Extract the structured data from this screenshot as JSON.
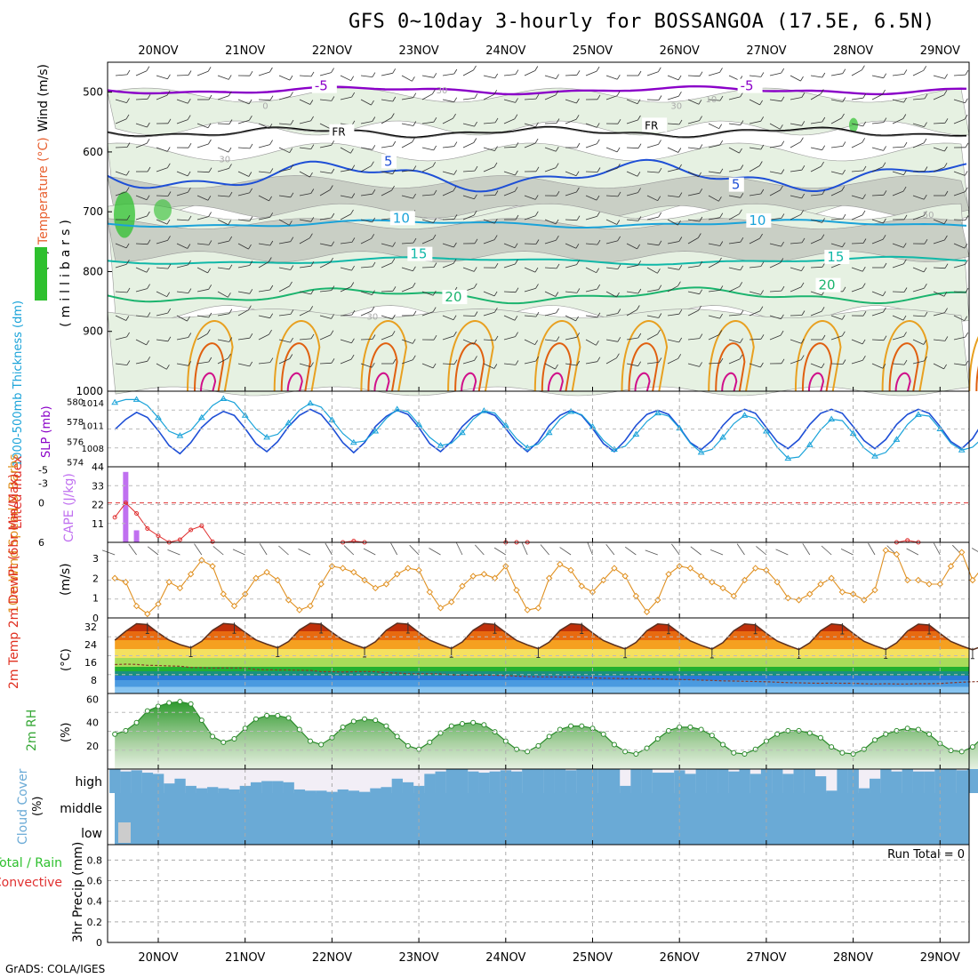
{
  "title": "GFS 0~10day 3-hourly for BOSSANGOA (17.5E, 6.5N)",
  "credit": "GrADS: COLA/IGES",
  "dates": [
    "20NOV",
    "21NOV",
    "22NOV",
    "23NOV",
    "24NOV",
    "25NOV",
    "26NOV",
    "27NOV",
    "28NOV",
    "29NOV"
  ],
  "colors": {
    "purple": "#8a00c8",
    "blue": "#1e4fd6",
    "cyan": "#1aa3d9",
    "teal": "#10b8a8",
    "seagreen": "#1bb46e",
    "orange": "#e8a020",
    "darkorange": "#e06010",
    "magenta": "#d0108a",
    "rh": "#2ec02e",
    "lifted": "#e03030",
    "cape": "#c070f0",
    "wind10": "#e09020",
    "cloud": "#6aaad6",
    "cloudpale": "#f2eef6",
    "rh2m": "#38a838"
  },
  "chart_data": [
    {
      "type": "contour",
      "panel": "upper_air",
      "ylabel_parts": [
        "RH (%)",
        "Temperature (°C)",
        "Wind (m/s)"
      ],
      "ylabel_unit": "(millibars)",
      "y_ticks": [
        500,
        600,
        700,
        800,
        900,
        1000
      ],
      "ylim": [
        1000,
        450
      ],
      "isotherm_labels": [
        {
          "text": "-5",
          "level": 497,
          "day": 1.8
        },
        {
          "text": "-5",
          "level": 497,
          "day": 6.7
        },
        {
          "text": "FR",
          "level": 573,
          "day": 2.0
        },
        {
          "text": "FR",
          "level": 562,
          "day": 5.6
        },
        {
          "text": "5",
          "level": 623,
          "day": 2.6
        },
        {
          "text": "5",
          "level": 662,
          "day": 6.6
        },
        {
          "text": "10",
          "level": 718,
          "day": 2.7
        },
        {
          "text": "10",
          "level": 722,
          "day": 6.8
        },
        {
          "text": "15",
          "level": 778,
          "day": 2.9
        },
        {
          "text": "15",
          "level": 783,
          "day": 7.7
        },
        {
          "text": "20",
          "level": 850,
          "day": 3.3
        },
        {
          "text": "20",
          "level": 830,
          "day": 7.6
        }
      ],
      "rh_labels": [
        {
          "text": "30",
          "level": 502,
          "day": 3.2
        },
        {
          "text": "0",
          "level": 528,
          "day": 1.2
        },
        {
          "text": "30",
          "level": 528,
          "day": 5.9
        },
        {
          "text": "10",
          "level": 517,
          "day": 6.3
        },
        {
          "text": "30",
          "level": 617,
          "day": 0.7
        },
        {
          "text": "50",
          "level": 710,
          "day": 8.8
        },
        {
          "text": "30",
          "level": 880,
          "day": 2.4
        }
      ]
    },
    {
      "type": "line",
      "panel": "thickness_slp",
      "ylabel": "1000-500mb Thickness (dm)",
      "ylabel_right": "SLP (mb)",
      "y_ticks_left": [
        574,
        576,
        578,
        580
      ],
      "y_ticks_slp": [
        1008,
        1011,
        1014
      ],
      "series": [
        {
          "name": "Thickness (dm)",
          "values": [
            577.2,
            578.2,
            578.9,
            578.4,
            577.1,
            575.6,
            574.8,
            575.9,
            577.4,
            578.4,
            579.0,
            578.6,
            577.3,
            575.8,
            575.0,
            576.0,
            577.5,
            578.6,
            579.2,
            578.7,
            577.4,
            575.9,
            574.9,
            575.9,
            577.5,
            578.5,
            579.1,
            578.7,
            577.4,
            575.8,
            575.0,
            576.0,
            577.5,
            578.5,
            579.0,
            578.6,
            577.3,
            575.9,
            575.0,
            576.0,
            577.6,
            578.6,
            579.1,
            578.6,
            577.3,
            575.8,
            575.0,
            576.1,
            577.6,
            578.7,
            579.1,
            578.7,
            577.4,
            575.9,
            575.2,
            576.1,
            577.6,
            578.7,
            579.2,
            578.8,
            577.4,
            576.0,
            575.3,
            576.2,
            577.7,
            578.8,
            579.2,
            578.8,
            577.5,
            576.1,
            575.3,
            576.2,
            577.7,
            578.7,
            579.2,
            578.8,
            577.5,
            576.0,
            575.3,
            576.3,
            578.0
          ]
        },
        {
          "name": "SLP (mb)",
          "values": [
            1014.0,
            1014.4,
            1014.4,
            1013.6,
            1012.0,
            1010.2,
            1009.6,
            1010.3,
            1012.0,
            1013.6,
            1014.5,
            1014.0,
            1012.3,
            1010.5,
            1009.4,
            1009.8,
            1011.3,
            1013.0,
            1013.9,
            1013.4,
            1011.7,
            1009.9,
            1008.7,
            1008.9,
            1010.2,
            1011.9,
            1013.1,
            1012.8,
            1011.1,
            1009.4,
            1008.3,
            1008.6,
            1010.0,
            1011.8,
            1012.9,
            1012.6,
            1011.0,
            1009.2,
            1008.0,
            1008.5,
            1010.0,
            1011.8,
            1012.8,
            1012.4,
            1010.8,
            1009.0,
            1007.8,
            1008.2,
            1009.8,
            1011.5,
            1012.6,
            1012.2,
            1010.6,
            1008.6,
            1007.4,
            1007.8,
            1009.4,
            1011.2,
            1012.3,
            1011.9,
            1010.2,
            1008.1,
            1006.6,
            1006.8,
            1008.4,
            1010.4,
            1011.8,
            1011.6,
            1009.9,
            1008.0,
            1006.9,
            1007.4,
            1009.1,
            1011.1,
            1012.4,
            1012.2,
            1010.5,
            1008.6,
            1007.7,
            1008.1,
            1009.4
          ]
        }
      ]
    },
    {
      "type": "bar+line",
      "panel": "lifted_cape",
      "ylabel": "Lifted Index",
      "ylabel_right": "CAPE (J/kg)",
      "y_ticks_left": [
        6,
        0,
        -3,
        -5
      ],
      "y_ticks_cape": [
        11,
        22,
        33,
        44
      ],
      "cape_bars": [
        {
          "t": 1,
          "value": 41
        },
        {
          "t": 2,
          "value": 7
        }
      ],
      "lifted_index": [
        {
          "t": 0,
          "value": 2.2
        },
        {
          "t": 1,
          "value": 0.0
        },
        {
          "t": 2,
          "value": 1.6
        },
        {
          "t": 3,
          "value": 3.9
        },
        {
          "t": 4,
          "value": 5.0
        },
        {
          "t": 5,
          "value": 6.4
        },
        {
          "t": 6,
          "value": 5.6
        },
        {
          "t": 7,
          "value": 4.1
        },
        {
          "t": 8,
          "value": 3.5
        },
        {
          "t": 9,
          "value": 5.9
        },
        {
          "t": 21,
          "value": 7.0
        },
        {
          "t": 22,
          "value": 5.8
        },
        {
          "t": 23,
          "value": 6.8
        },
        {
          "t": 36,
          "value": 6.8
        },
        {
          "t": 37,
          "value": 6.0
        },
        {
          "t": 38,
          "value": 6.9
        },
        {
          "t": 72,
          "value": 6.7
        },
        {
          "t": 73,
          "value": 5.7
        },
        {
          "t": 74,
          "value": 6.7
        }
      ]
    },
    {
      "type": "line",
      "panel": "wind10m",
      "ylabel": "10m Wind Speed & Barbs",
      "y_unit": "(m/s)",
      "y_ticks": [
        0,
        1,
        2,
        3
      ],
      "values": [
        2.0,
        1.8,
        0.6,
        0.2,
        0.7,
        1.8,
        1.5,
        2.2,
        2.9,
        2.6,
        1.2,
        0.6,
        1.2,
        2.0,
        2.3,
        1.9,
        0.9,
        0.4,
        0.6,
        1.7,
        2.6,
        2.5,
        2.3,
        1.9,
        1.5,
        1.7,
        2.2,
        2.5,
        2.4,
        1.3,
        0.5,
        0.8,
        1.6,
        2.1,
        2.2,
        2.0,
        2.6,
        1.4,
        0.4,
        0.5,
        2.0,
        2.7,
        2.4,
        1.6,
        1.3,
        1.9,
        2.5,
        2.1,
        1.1,
        0.3,
        0.9,
        2.2,
        2.6,
        2.5,
        2.1,
        1.8,
        1.5,
        1.1,
        1.9,
        2.5,
        2.4,
        1.8,
        1.0,
        0.9,
        1.2,
        1.7,
        2.0,
        1.3,
        1.2,
        0.9,
        1.4,
        3.4,
        3.2,
        1.9,
        1.9,
        1.7,
        1.7,
        2.6,
        3.3,
        1.9,
        2.6,
        0.3,
        0.4,
        0.4,
        2.0,
        1.4,
        2.3,
        1.5
      ]
    },
    {
      "type": "area",
      "panel": "temp2m",
      "ylabel": "2m Temp 2m DewPt (6hr Min/Max)",
      "y_unit": "(°C)",
      "y_ticks": [
        8,
        16,
        24,
        32
      ],
      "temp": [
        26.0,
        30.0,
        33.4,
        33.0,
        29.3,
        26.0,
        24.0,
        22.6,
        25.5,
        30.5,
        33.5,
        33.1,
        29.5,
        26.1,
        24.2,
        22.6,
        25.4,
        30.6,
        33.6,
        33.2,
        29.5,
        26.1,
        24.1,
        22.4,
        25.3,
        30.5,
        33.6,
        33.2,
        29.5,
        26.0,
        24.0,
        22.3,
        25.2,
        30.5,
        33.5,
        33.1,
        29.4,
        25.9,
        23.9,
        22.2,
        25.1,
        30.4,
        33.4,
        33.0,
        29.3,
        25.8,
        23.8,
        22.1,
        25.0,
        30.3,
        33.3,
        32.9,
        29.2,
        25.7,
        23.7,
        22.0,
        24.9,
        30.2,
        33.3,
        32.9,
        29.1,
        25.6,
        23.6,
        21.8,
        24.8,
        30.2,
        33.3,
        32.8,
        29.1,
        25.5,
        23.5,
        21.8,
        24.8,
        30.1,
        33.2,
        32.8,
        29.0,
        25.4,
        23.4,
        21.7,
        23.5
      ],
      "dewpoint": [
        15.0,
        15.2,
        15.1,
        14.7,
        14.6,
        14.4,
        14.3,
        13.7,
        13.6,
        13.4,
        13.5,
        13.5,
        13.4,
        12.8,
        12.7,
        12.6,
        12.6,
        12.5,
        12.4,
        11.8,
        11.8,
        11.7,
        11.8,
        11.9,
        11.8,
        11.3,
        11.2,
        10.9,
        10.9,
        10.9,
        10.8,
        10.4,
        10.3,
        10.2,
        10.3,
        10.2,
        10.1,
        9.8,
        9.6,
        9.5,
        9.5,
        9.4,
        9.4,
        9.2,
        9.1,
        8.9,
        8.8,
        8.7,
        8.7,
        8.6,
        8.6,
        8.4,
        8.3,
        8.2,
        8.0,
        7.9,
        7.7,
        7.6,
        7.5,
        7.4,
        7.3,
        7.1,
        6.9,
        6.8,
        6.7,
        6.6,
        6.7,
        6.6,
        6.6,
        6.4,
        6.3,
        6.4,
        6.3,
        6.3,
        6.4,
        6.4,
        6.5,
        6.8,
        7.1,
        7.3,
        7.5
      ]
    },
    {
      "type": "area",
      "panel": "rh2m",
      "ylabel": "2m RH",
      "y_unit": "(%)",
      "y_ticks": [
        20,
        40,
        60
      ],
      "values": [
        30,
        33,
        40,
        50,
        54,
        57,
        58,
        56,
        42,
        28,
        23,
        26,
        35,
        43,
        46,
        46,
        44,
        34,
        24,
        21,
        27,
        36,
        41,
        43,
        42,
        37,
        28,
        20,
        17,
        23,
        31,
        37,
        39,
        40,
        38,
        32,
        24,
        17,
        15,
        20,
        28,
        34,
        37,
        37,
        35,
        30,
        21,
        15,
        13,
        18,
        26,
        33,
        36,
        36,
        34,
        29,
        21,
        14,
        13,
        17,
        24,
        30,
        33,
        33,
        31,
        27,
        19,
        14,
        13,
        17,
        25,
        30,
        33,
        35,
        34,
        30,
        22,
        16,
        15,
        19,
        28,
        34,
        37,
        39,
        37
      ]
    },
    {
      "type": "heatmap",
      "panel": "cloud",
      "ylabel": "Cloud Cover (%)",
      "levels": [
        "high",
        "middle",
        "low"
      ],
      "high": [
        100,
        90,
        95,
        85,
        80,
        40,
        60,
        30,
        20,
        25,
        20,
        15,
        30,
        45,
        50,
        50,
        45,
        15,
        10,
        10,
        5,
        15,
        10,
        5,
        20,
        25,
        60,
        45,
        30,
        80,
        90,
        100,
        100,
        90,
        85,
        90,
        95,
        90,
        100,
        100,
        100,
        100,
        95,
        100,
        100,
        100,
        100,
        30,
        100,
        100,
        85,
        85,
        95,
        80,
        100,
        100,
        100,
        90,
        100,
        80,
        100,
        100,
        80,
        100,
        100,
        70,
        10,
        100,
        100,
        20,
        60,
        100,
        90,
        100,
        90,
        90,
        100,
        100,
        95,
        100,
        20
      ],
      "middle": [
        100
      ],
      "low": [
        35,
        0
      ]
    },
    {
      "type": "bar",
      "panel": "precip",
      "ylabel": "3hr Precip (mm)",
      "side_labels": [
        "Total / Rain",
        "Convective"
      ],
      "y_ticks": [
        0,
        0.2,
        0.4,
        0.6,
        0.8
      ],
      "run_total": "Run Total = 0",
      "values": []
    }
  ]
}
